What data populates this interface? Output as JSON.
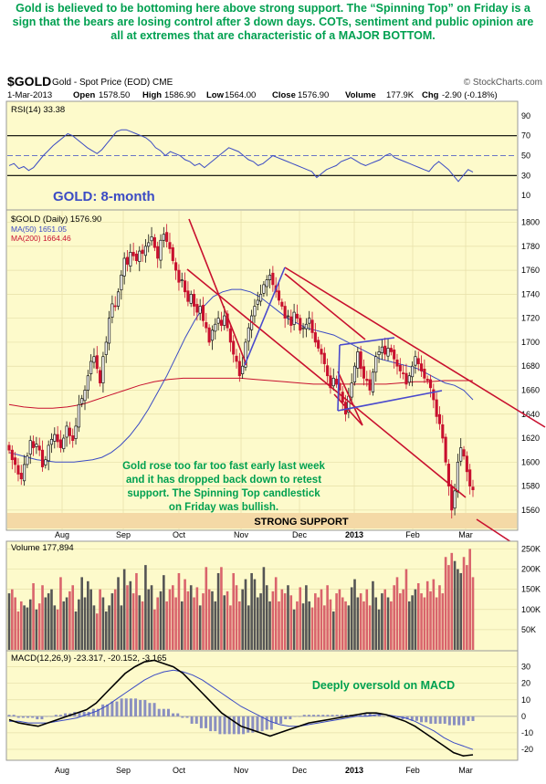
{
  "headline": "Gold is believed to be bottoming here above strong support. The “Spinning Top” on Friday is a sign that the bears are losing control after 3 down days. COTs, sentiment and public opinion are all at extremes that are characteristic of a MAJOR BOTTOM.",
  "header": {
    "symbol": "$GOLD",
    "name": "Gold - Spot Price (EOD) CME",
    "source": "© StockCharts.com",
    "date": "1-Mar-2013",
    "open_label": "Open",
    "open": "1578.50",
    "high_label": "High",
    "high": "1586.90",
    "low_label": "Low",
    "low": "1564.00",
    "close_label": "Close",
    "close": "1576.90",
    "volume_label": "Volume",
    "volume": "177.9K",
    "chg_label": "Chg",
    "chg": "-2.90 (-0.18%)"
  },
  "colors": {
    "panel_bg": "#fdfacb",
    "up": "#111111",
    "down": "#c8102e",
    "ma50": "#3b4bc4",
    "ma200": "#c8102e",
    "trend": "#c8102e",
    "channel": "#4a4acd",
    "annotation": "#00a050",
    "support": "#f4d9a6"
  },
  "chart_data": [
    {
      "type": "line",
      "title": "RSI(14) 33.38",
      "ylim": [
        0,
        100
      ],
      "yticks": [
        10,
        30,
        50,
        70,
        90
      ],
      "reference_lines": [
        70,
        50,
        30
      ],
      "series": [
        {
          "name": "RSI(14)",
          "values": [
            40,
            42,
            37,
            39,
            35,
            38,
            44,
            50,
            55,
            60,
            64,
            68,
            72,
            70,
            66,
            62,
            58,
            55,
            52,
            56,
            62,
            68,
            74,
            76,
            76,
            74,
            72,
            70,
            68,
            64,
            58,
            55,
            50,
            54,
            52,
            50,
            46,
            44,
            40,
            42,
            38,
            42,
            46,
            50,
            54,
            58,
            56,
            54,
            50,
            46,
            44,
            40,
            42,
            46,
            50,
            48,
            46,
            44,
            42,
            40,
            38,
            36,
            34,
            28,
            32,
            36,
            38,
            40,
            44,
            46,
            48,
            45,
            42,
            40,
            42,
            44,
            46,
            50,
            52,
            48,
            46,
            44,
            42,
            40,
            38,
            36,
            34,
            40,
            44,
            40,
            36,
            30,
            24,
            30,
            36,
            33.38
          ]
        }
      ]
    },
    {
      "type": "candlestick",
      "title": "GOLD: 8-month",
      "legend": [
        "$GOLD (Daily) 1576.90",
        "MA(50) 1651.05",
        "MA(200) 1664.46"
      ],
      "x_labels": [
        "Aug",
        "Sep",
        "Oct",
        "Nov",
        "Dec",
        "2013",
        "Feb",
        "Mar"
      ],
      "ylim": [
        1550,
        1805
      ],
      "yticks": [
        1560,
        1580,
        1600,
        1620,
        1640,
        1660,
        1680,
        1700,
        1720,
        1740,
        1760,
        1780,
        1800
      ],
      "close": [
        1610,
        1602,
        1598,
        1590,
        1586,
        1598,
        1605,
        1618,
        1612,
        1615,
        1610,
        1596,
        1602,
        1614,
        1619,
        1623,
        1617,
        1612,
        1620,
        1630,
        1622,
        1618,
        1630,
        1648,
        1653,
        1660,
        1672,
        1684,
        1688,
        1678,
        1666,
        1688,
        1700,
        1720,
        1732,
        1730,
        1742,
        1756,
        1770,
        1765,
        1775,
        1772,
        1768,
        1776,
        1774,
        1780,
        1783,
        1788,
        1779,
        1770,
        1785,
        1790,
        1784,
        1778,
        1768,
        1760,
        1750,
        1752,
        1742,
        1734,
        1740,
        1730,
        1725,
        1730,
        1718,
        1712,
        1700,
        1710,
        1715,
        1720,
        1714,
        1722,
        1712,
        1700,
        1690,
        1684,
        1672,
        1680,
        1700,
        1712,
        1722,
        1730,
        1735,
        1740,
        1748,
        1752,
        1756,
        1748,
        1742,
        1735,
        1730,
        1720,
        1722,
        1714,
        1725,
        1720,
        1710,
        1712,
        1715,
        1720,
        1708,
        1700,
        1695,
        1690,
        1682,
        1672,
        1662,
        1670,
        1665,
        1660,
        1650,
        1640,
        1655,
        1666,
        1680,
        1692,
        1678,
        1670,
        1668,
        1660,
        1675,
        1688,
        1692,
        1696,
        1690,
        1695,
        1692,
        1686,
        1680,
        1676,
        1674,
        1665,
        1672,
        1680,
        1688,
        1682,
        1676,
        1670,
        1668,
        1662,
        1652,
        1638,
        1632,
        1620,
        1600,
        1580,
        1560,
        1576,
        1600,
        1612,
        1605,
        1592,
        1580,
        1576.9
      ],
      "ma50": [
        1608,
        1606,
        1604,
        1602,
        1601,
        1600,
        1600,
        1600,
        1601,
        1602,
        1604,
        1608,
        1614,
        1622,
        1632,
        1644,
        1658,
        1672,
        1688,
        1704,
        1718,
        1730,
        1738,
        1742,
        1744,
        1744,
        1742,
        1738,
        1732,
        1726,
        1720,
        1716,
        1712,
        1710,
        1708,
        1706,
        1702,
        1698,
        1694,
        1690,
        1686,
        1684,
        1682,
        1680,
        1678,
        1674,
        1670,
        1666,
        1664,
        1660,
        1652
      ],
      "ma200": [
        1648,
        1646,
        1645,
        1645,
        1646,
        1648,
        1652,
        1656,
        1660,
        1664,
        1667,
        1669,
        1670,
        1670,
        1670,
        1670,
        1670,
        1669,
        1668,
        1667,
        1666,
        1665,
        1665,
        1665,
        1665,
        1665,
        1665,
        1666,
        1667,
        1667,
        1668,
        1668,
        1668
      ],
      "annotations": [
        "Gold rose too far too fast early last week and it has dropped back down to retest support. The Spinning Top candlestick on Friday was bullish.",
        "STRONG SUPPORT"
      ]
    },
    {
      "type": "bar",
      "title": "Volume 177,894",
      "ylim": [
        0,
        260000
      ],
      "yticks": [
        "50K",
        "100K",
        "150K",
        "200K",
        "250K"
      ],
      "series": [
        {
          "name": "Volume",
          "values": [
            140,
            150,
            130,
            95,
            120,
            110,
            105,
            125,
            165,
            100,
            115,
            160,
            130,
            140,
            150,
            110,
            100,
            180,
            120,
            130,
            145,
            160,
            95,
            125,
            180,
            130,
            170,
            150,
            110,
            90,
            150,
            130,
            95,
            110,
            140,
            150,
            180,
            110,
            200,
            160,
            170,
            140,
            190,
            135,
            120,
            210,
            150,
            160,
            100,
            130,
            145,
            185,
            120,
            150,
            160,
            130,
            190,
            120,
            175,
            145,
            160,
            130,
            155,
            110,
            140,
            205,
            150,
            145,
            120,
            190,
            205,
            135,
            145,
            110,
            190,
            160,
            120,
            150,
            175,
            110,
            190,
            175,
            130,
            140,
            205,
            160,
            120,
            145,
            180,
            120,
            150,
            140,
            160,
            135,
            100,
            120,
            155,
            115,
            160,
            120,
            105,
            140,
            130,
            150,
            110,
            160,
            125,
            95,
            140,
            150,
            130,
            120,
            110,
            155,
            175,
            130,
            140,
            120,
            150,
            110,
            170,
            130,
            100,
            140,
            150,
            130,
            120,
            160,
            180,
            140,
            150,
            200,
            120,
            135,
            150,
            165,
            140,
            130,
            170,
            145,
            175,
            130,
            160,
            140,
            230,
            210,
            240,
            220,
            200,
            190,
            230,
            210,
            250,
            180
          ]
        }
      ]
    },
    {
      "type": "line",
      "title": "MACD(12,26,9) -23.317, -20.152, -3.165",
      "ylim": [
        -25,
        37
      ],
      "yticks": [
        -20,
        -10,
        0,
        10,
        20,
        30
      ],
      "annotations": [
        "Deeply oversold on MACD"
      ],
      "series": [
        {
          "name": "MACD",
          "values": [
            -2,
            -4,
            -5,
            -6,
            -4,
            -2,
            0,
            2,
            4,
            8,
            14,
            20,
            26,
            30,
            33,
            34,
            32,
            30,
            26,
            20,
            14,
            8,
            2,
            -2,
            -6,
            -8,
            -10,
            -12,
            -10,
            -8,
            -6,
            -4,
            -3,
            -2,
            -1,
            0,
            1,
            2,
            2,
            1,
            -1,
            -3,
            -6,
            -10,
            -14,
            -18,
            -22,
            -24,
            -23.317
          ]
        },
        {
          "name": "Signal",
          "values": [
            -3,
            -3,
            -4,
            -4,
            -4,
            -3,
            -2,
            -1,
            1,
            3,
            6,
            10,
            14,
            18,
            22,
            25,
            27,
            28,
            27,
            25,
            22,
            18,
            14,
            10,
            6,
            3,
            0,
            -3,
            -5,
            -6,
            -6,
            -5,
            -4,
            -3,
            -2,
            -1,
            0,
            0,
            1,
            1,
            0,
            -1,
            -3,
            -6,
            -9,
            -13,
            -16,
            -18,
            -20.152
          ]
        }
      ],
      "histogram": -3.165
    }
  ]
}
